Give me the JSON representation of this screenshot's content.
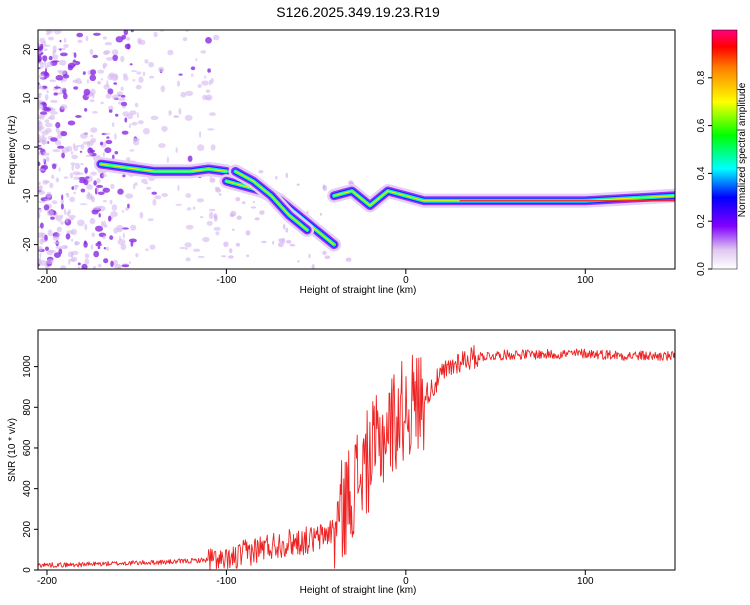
{
  "figure": {
    "title": "S126.2025.349.19.23.R19"
  },
  "chart_data": [
    {
      "type": "heatmap",
      "xlabel": "Height of straight line (km)",
      "ylabel": "Frequency (Hz)",
      "xlim": [
        -205,
        150
      ],
      "ylim": [
        -25,
        24
      ],
      "xticks": [
        -200,
        -100,
        0,
        100
      ],
      "yticks": [
        20,
        10,
        0,
        -10,
        -20
      ],
      "grid": false,
      "colorbar": {
        "label": "Normalized spectral amplitude",
        "range": [
          0,
          1
        ],
        "ticks": [
          0.0,
          0.2,
          0.4,
          0.6,
          0.8
        ]
      },
      "tones": [
        {
          "x": [
            -170,
            -160,
            -150,
            -140,
            -130,
            -120,
            -110,
            -100
          ],
          "y": [
            -3.5,
            -4,
            -4.5,
            -5,
            -5,
            -5,
            -4.5,
            -5
          ]
        },
        {
          "x": [
            -100,
            -90,
            -80,
            -70,
            -60,
            -50,
            -40
          ],
          "y": [
            -7,
            -8,
            -9,
            -11,
            -14,
            -17,
            -20
          ]
        },
        {
          "x": [
            -95,
            -85,
            -75,
            -65,
            -55
          ],
          "y": [
            -5,
            -7,
            -10,
            -14,
            -17
          ]
        },
        {
          "x": [
            -40,
            -30,
            -20,
            -10,
            0,
            10,
            30,
            60,
            100,
            150
          ],
          "y": [
            -10,
            -9,
            -12,
            -9,
            -10,
            -11,
            -11,
            -11,
            -11,
            -10
          ]
        }
      ]
    },
    {
      "type": "line",
      "xlabel": "Height of straight line (km)",
      "ylabel": "SNR (10 * v/v)",
      "xlim": [
        -205,
        150
      ],
      "ylim": [
        0,
        1180
      ],
      "xticks": [
        -200,
        -100,
        0,
        100
      ],
      "yticks": [
        0,
        200,
        400,
        600,
        800,
        1000
      ],
      "grid": false,
      "color": "#ee2222",
      "x": [
        -205,
        -190,
        -170,
        -150,
        -130,
        -110,
        -100,
        -90,
        -80,
        -70,
        -60,
        -50,
        -40,
        -35,
        -30,
        -25,
        -20,
        -15,
        -10,
        -5,
        0,
        5,
        10,
        15,
        20,
        30,
        40,
        60,
        80,
        100,
        120,
        150
      ],
      "y": [
        25,
        25,
        30,
        35,
        40,
        50,
        35,
        80,
        110,
        130,
        140,
        150,
        200,
        300,
        400,
        480,
        550,
        620,
        700,
        750,
        800,
        820,
        850,
        900,
        960,
        1030,
        1050,
        1060,
        1060,
        1065,
        1055,
        1050
      ]
    }
  ]
}
